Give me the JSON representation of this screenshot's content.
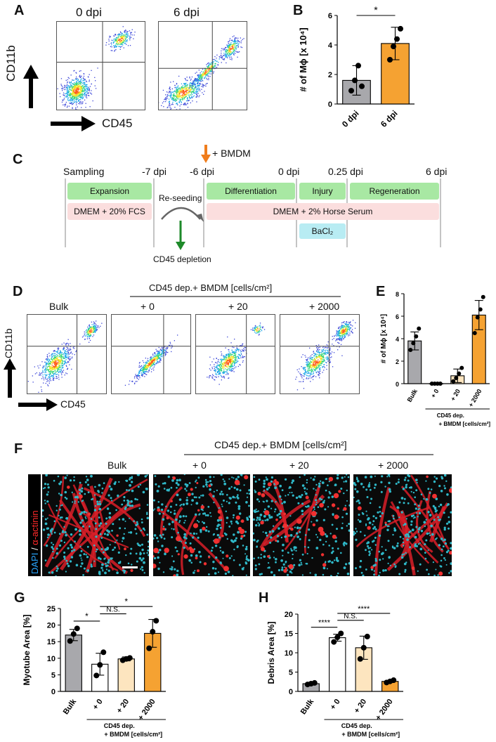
{
  "panels": {
    "A": "A",
    "B": "B",
    "C": "C",
    "D": "D",
    "E": "E",
    "F": "F",
    "G": "G",
    "H": "H"
  },
  "A": {
    "col_titles": [
      "0 dpi",
      "6 dpi"
    ],
    "y_marker": "CD11b",
    "x_marker": "CD45"
  },
  "B": {
    "ylabel": "# of Mϕ [x 10⁴]",
    "significance": "*",
    "yticks": [
      "0",
      "2",
      "4",
      "6"
    ],
    "chart_data": {
      "type": "bar",
      "categories": [
        "0 dpi",
        "6 dpi"
      ],
      "values": [
        1.6,
        4.1
      ],
      "errors": [
        1.0,
        1.1
      ],
      "points": [
        [
          0.9,
          1.6,
          2.6,
          1.2
        ],
        [
          3.0,
          3.9,
          4.4,
          5.1
        ]
      ],
      "ylim": [
        0,
        6
      ],
      "colors": [
        "#a8a8ac",
        "#f5a232"
      ]
    }
  },
  "C": {
    "arrow_label": "+ BMDM",
    "timepoints": [
      "Sampling",
      "-7 dpi",
      "-6 dpi",
      "0 dpi",
      "0.25 dpi",
      "6 dpi"
    ],
    "phases": [
      "Expansion",
      "Differentiation",
      "Injury",
      "Regeneration"
    ],
    "media": [
      "DMEM + 20% FCS",
      "DMEM + 2% Horse Serum"
    ],
    "reagent": "BaCl₂",
    "reseed": "Re-seeding",
    "depletion": "CD45 depletion"
  },
  "D": {
    "group_title": "CD45 dep.+ BMDM  [cells/cm²]",
    "col_titles": [
      "Bulk",
      "+ 0",
      "+ 20",
      "+ 2000"
    ],
    "y_marker": "CD11b",
    "x_marker": "CD45"
  },
  "E": {
    "ylabel": "# of Mϕ [x 10⁴]",
    "yticks": [
      "0",
      "2",
      "4",
      "6",
      "8"
    ],
    "group1": "CD45 dep.",
    "group2": "+ BMDM [cells/cm²]",
    "chart_data": {
      "type": "bar",
      "categories": [
        "Bulk",
        "+ 0",
        "+ 20",
        "+ 2000"
      ],
      "values": [
        3.8,
        0.0,
        0.7,
        6.1
      ],
      "errors": [
        0.8,
        0.05,
        0.6,
        1.3
      ],
      "points": [
        [
          3.0,
          3.6,
          4.2,
          4.9
        ],
        [
          0,
          0,
          0,
          0
        ],
        [
          0.2,
          0.5,
          0.9,
          1.4
        ],
        [
          4.5,
          5.9,
          6.6,
          7.7
        ]
      ],
      "ylim": [
        0,
        8
      ],
      "colors": [
        "#a8a8ac",
        "#ffffff",
        "#fde5bf",
        "#f5a232"
      ]
    }
  },
  "F": {
    "group_title": "CD45 dep.+ BMDM  [cells/cm²]",
    "col_titles": [
      "Bulk",
      "+ 0",
      "+ 20",
      "+ 2000"
    ],
    "stain_dapi": "DAPI",
    "stain_sep": " / ",
    "stain_actinin": "α-actinin"
  },
  "G": {
    "ylabel": "Myotube Area [%]",
    "yticks": [
      "0",
      "5",
      "10",
      "15",
      "20",
      "25"
    ],
    "sig": [
      "*",
      "N.S.",
      "*"
    ],
    "group1": "CD45 dep.",
    "group2": "+ BMDM [cells/cm²]",
    "chart_data": {
      "type": "bar",
      "categories": [
        "Bulk",
        "+ 0",
        "+ 20",
        "+ 2000"
      ],
      "values": [
        17.0,
        8.2,
        9.8,
        17.5
      ],
      "errors": [
        1.7,
        3.3,
        0.6,
        4.2
      ],
      "points": [
        [
          15.2,
          17.3,
          19.0
        ],
        [
          4.8,
          8.0,
          11.8
        ],
        [
          9.4,
          9.8,
          10.1
        ],
        [
          13.0,
          18.0,
          21.3
        ]
      ],
      "ylim": [
        0,
        25
      ],
      "colors": [
        "#a8a8ac",
        "#ffffff",
        "#fde5bf",
        "#f5a232"
      ]
    }
  },
  "H": {
    "ylabel": "Debris Area [%]",
    "yticks": [
      "0",
      "5",
      "10",
      "15",
      "20"
    ],
    "sig": [
      "****",
      "N.S.",
      "****"
    ],
    "group1": "CD45 dep.",
    "group2": "+ BMDM [cells/cm²]",
    "chart_data": {
      "type": "bar",
      "categories": [
        "Bulk",
        "+ 0",
        "+ 20",
        "+ 2000"
      ],
      "values": [
        2.0,
        13.9,
        11.3,
        2.6
      ],
      "errors": [
        0.3,
        0.9,
        3.0,
        0.3
      ],
      "points": [
        [
          1.8,
          2.0,
          2.2
        ],
        [
          12.8,
          14.0,
          15.0
        ],
        [
          8.4,
          11.3,
          14.2
        ],
        [
          2.3,
          2.6,
          2.9
        ]
      ],
      "ylim": [
        0,
        20
      ],
      "colors": [
        "#a8a8ac",
        "#ffffff",
        "#fde5bf",
        "#f5a232"
      ]
    }
  }
}
